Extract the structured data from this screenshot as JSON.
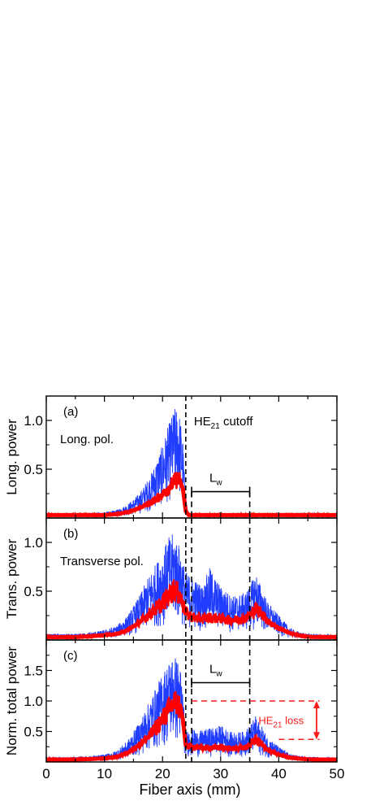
{
  "chart_data": {
    "type": "line",
    "xlabel": "Fiber axis (mm)",
    "xlim": [
      0,
      50
    ],
    "x_ticks": [
      "0",
      "10",
      "20",
      "30",
      "40",
      "50"
    ],
    "series_colors": {
      "envelope": "#1f3cff",
      "mean": "#ff0000"
    },
    "cutoff_x": 24,
    "dashed_x": [
      25,
      35
    ],
    "lw_range": [
      25,
      35
    ],
    "panels": [
      {
        "id": "a",
        "letter": "(a)",
        "ylabel": "Long. power",
        "ylim": [
          0,
          1.25
        ],
        "y_ticks": [
          {
            "value": 0.5,
            "label": "0.5"
          },
          {
            "value": 1.0,
            "label": "1.0"
          }
        ],
        "text": "Long. pol.",
        "cutoff_base": "HE",
        "cutoff_sub": "21",
        "cutoff_rest": " cutoff",
        "lw_base": "L",
        "lw_sub": "w",
        "lw_y": 0.27,
        "x": [
          0,
          5,
          8,
          10,
          12,
          14,
          16,
          17,
          18,
          19,
          20,
          21,
          22,
          22.5,
          23,
          23.5,
          24,
          24.5,
          30,
          40,
          50
        ],
        "mean": [
          0.03,
          0.03,
          0.03,
          0.03,
          0.04,
          0.06,
          0.1,
          0.13,
          0.16,
          0.2,
          0.24,
          0.3,
          0.37,
          0.4,
          0.38,
          0.3,
          0.07,
          0.03,
          0.03,
          0.03,
          0.03
        ],
        "max": [
          0.05,
          0.05,
          0.05,
          0.06,
          0.08,
          0.14,
          0.25,
          0.35,
          0.45,
          0.6,
          0.75,
          0.95,
          1.12,
          1.15,
          1.05,
          0.8,
          0.15,
          0.05,
          0.05,
          0.05,
          0.05
        ]
      },
      {
        "id": "b",
        "letter": "(b)",
        "ylabel": "Trans. power",
        "ylim": [
          0,
          1.25
        ],
        "y_ticks": [
          {
            "value": 0.5,
            "label": "0.5"
          },
          {
            "value": 1.0,
            "label": "1.0"
          }
        ],
        "text": "Transverse pol.",
        "x": [
          0,
          5,
          8,
          10,
          12,
          14,
          16,
          18,
          20,
          21,
          22,
          23,
          24,
          25,
          26,
          27,
          28,
          30,
          32,
          34,
          35,
          36,
          37,
          38,
          40,
          42,
          44,
          46,
          50
        ],
        "mean": [
          0.03,
          0.03,
          0.04,
          0.05,
          0.06,
          0.1,
          0.18,
          0.28,
          0.38,
          0.45,
          0.52,
          0.45,
          0.28,
          0.24,
          0.22,
          0.22,
          0.23,
          0.22,
          0.2,
          0.22,
          0.25,
          0.32,
          0.28,
          0.2,
          0.12,
          0.07,
          0.04,
          0.03,
          0.03
        ],
        "max": [
          0.06,
          0.06,
          0.08,
          0.1,
          0.14,
          0.25,
          0.45,
          0.7,
          0.9,
          1.05,
          1.1,
          0.95,
          0.7,
          0.65,
          0.6,
          0.55,
          0.75,
          0.55,
          0.45,
          0.48,
          0.55,
          0.7,
          0.55,
          0.4,
          0.25,
          0.12,
          0.07,
          0.06,
          0.05
        ]
      },
      {
        "id": "c",
        "letter": "(c)",
        "ylabel": "Norm. total power",
        "ylim": [
          0,
          2.0
        ],
        "y_ticks": [
          {
            "value": 0.5,
            "label": "0.5"
          },
          {
            "value": 1.0,
            "label": "1.0"
          },
          {
            "value": 1.5,
            "label": "1.5"
          }
        ],
        "lw_base": "L",
        "lw_sub": "w",
        "lw_y": 1.3,
        "loss_base": "HE",
        "loss_sub": "21",
        "loss_rest": " loss",
        "loss_from": 1.0,
        "loss_to": 0.37,
        "x": [
          0,
          5,
          8,
          10,
          12,
          14,
          16,
          18,
          20,
          21,
          22,
          23,
          23.5,
          24,
          25,
          26,
          28,
          30,
          32,
          34,
          35,
          36,
          37,
          38,
          40,
          42,
          44,
          46,
          50
        ],
        "mean": [
          0.04,
          0.04,
          0.05,
          0.06,
          0.08,
          0.15,
          0.28,
          0.45,
          0.7,
          0.85,
          0.98,
          0.9,
          0.7,
          0.27,
          0.25,
          0.24,
          0.23,
          0.25,
          0.22,
          0.24,
          0.28,
          0.38,
          0.3,
          0.2,
          0.12,
          0.07,
          0.05,
          0.04,
          0.04
        ],
        "max": [
          0.08,
          0.08,
          0.1,
          0.12,
          0.18,
          0.35,
          0.65,
          1.05,
          1.45,
          1.65,
          1.78,
          1.6,
          1.2,
          0.5,
          0.55,
          0.5,
          0.55,
          0.6,
          0.48,
          0.5,
          0.6,
          0.75,
          0.6,
          0.42,
          0.25,
          0.13,
          0.09,
          0.08,
          0.07
        ]
      }
    ]
  }
}
